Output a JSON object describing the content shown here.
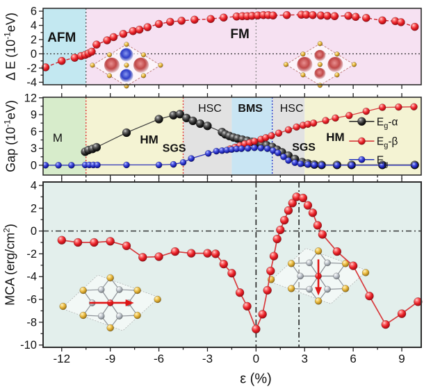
{
  "figure": {
    "x_axis": {
      "label": "ε (%)",
      "min": -13.15,
      "max": 10.2,
      "major_ticks": [
        -12,
        -9,
        -6,
        -3,
        0,
        3,
        6,
        9
      ],
      "minor_ticks": [
        -10.5,
        -7.5,
        -4.5,
        -1.5,
        1.5,
        4.5,
        7.5
      ]
    }
  },
  "chart_data": [
    {
      "id": "delta-E",
      "type": "line",
      "ylabel": {
        "pre": "Δ E (10",
        "sup": "-1",
        "post": "eV)"
      },
      "ylim": [
        -4.35,
        6.4
      ],
      "yticks": {
        "major": [
          -4,
          -2,
          0,
          2,
          4,
          6
        ],
        "minor": [
          -3,
          -1,
          1,
          3,
          5
        ]
      },
      "regions": [
        {
          "label": "AFM",
          "from": -13.15,
          "to": -10.5,
          "fill": "#c3e8f1",
          "label_color": "#e8191c",
          "label_at": [
            -12.0,
            1.7
          ],
          "size": 19,
          "bold": true
        },
        {
          "label": "FM",
          "from": -10.5,
          "to": 10.2,
          "fill": "#f6e1f2",
          "label_color": "#2230c8",
          "label_at": [
            -1.0,
            2.2
          ],
          "size": 19,
          "bold": true
        }
      ],
      "vlines": [
        {
          "x": -10.5,
          "color": "#444444",
          "dash": "2 3",
          "width": 1.2
        },
        {
          "x": 0,
          "color": "#888888",
          "dash": "2 3",
          "width": 1.2
        }
      ],
      "hlines": [
        {
          "y": 0,
          "color": "#333333",
          "dash": "2 3",
          "width": 1.2
        }
      ],
      "series": [
        {
          "id": "delta-E",
          "marker": "red",
          "r": 5.6,
          "line_color": "#d0202a",
          "line_width": 1.4,
          "dash": "5 3",
          "points": [
            [
              -13,
              -1.9
            ],
            [
              -12,
              -1.0
            ],
            [
              -11.2,
              -0.55
            ],
            [
              -10.8,
              -0.3
            ],
            [
              -10.55,
              -0.15
            ],
            [
              -10.35,
              0.05
            ],
            [
              -10.15,
              0.3
            ],
            [
              -9.85,
              1.3
            ],
            [
              -9.2,
              1.9
            ],
            [
              -8.8,
              2.35
            ],
            [
              -8.2,
              2.8
            ],
            [
              -7.6,
              3.2
            ],
            [
              -7.2,
              3.4
            ],
            [
              -6.7,
              3.75
            ],
            [
              -6,
              4.2
            ],
            [
              -5.3,
              4.5
            ],
            [
              -4.6,
              4.65
            ],
            [
              -3.8,
              4.8
            ],
            [
              -2.8,
              4.9
            ],
            [
              -2,
              5.1
            ],
            [
              -1.2,
              5.25
            ],
            [
              -0.85,
              5.3
            ],
            [
              -0.55,
              5.3
            ],
            [
              -0.25,
              5.35
            ],
            [
              0.1,
              5.4
            ],
            [
              0.45,
              5.45
            ],
            [
              0.75,
              5.45
            ],
            [
              1.05,
              5.4
            ],
            [
              1.9,
              5.45
            ],
            [
              2.8,
              5.5
            ],
            [
              3.1,
              5.5
            ],
            [
              3.5,
              5.45
            ],
            [
              4,
              5.4
            ],
            [
              4.4,
              5.35
            ],
            [
              4.85,
              5.3
            ],
            [
              5.7,
              5.35
            ],
            [
              6.15,
              5.2
            ],
            [
              6.8,
              5.05
            ],
            [
              7.8,
              4.7
            ],
            [
              8.6,
              4.6
            ],
            [
              8.95,
              4.45
            ],
            [
              9.8,
              3.8
            ]
          ]
        }
      ]
    },
    {
      "id": "gap",
      "type": "line",
      "ylabel": {
        "pre": "Gap (10",
        "sup": "-1",
        "post": "eV)"
      },
      "ylim": [
        -1.75,
        12.1
      ],
      "yticks": {
        "major": [
          0,
          3,
          6,
          9,
          12
        ],
        "minor": [
          1.5,
          4.5,
          7.5,
          10.5
        ]
      },
      "regions": [
        {
          "label": "M",
          "from": -13.15,
          "to": -10.5,
          "fill": "#d7eccb",
          "label_color": "#1a1a1a",
          "label_at": [
            -12.25,
            4.2
          ],
          "size": 17,
          "bold": false
        },
        {
          "label": "HM",
          "from": -10.5,
          "to": -4.5,
          "fill": "#f4f3d3",
          "label_color": "#17c02e",
          "label_at": [
            -6.6,
            3.9
          ],
          "size": 17,
          "bold": true
        },
        {
          "label": "HSC",
          "from": -4.5,
          "to": -1.5,
          "fill": "#e2e2e2",
          "label_color": "#1a1a1a",
          "label_at": [
            -2.85,
            9.5
          ],
          "size": 16,
          "bold": false
        },
        {
          "label": "BMS",
          "from": -1.5,
          "to": 1.0,
          "fill": "#c9e5f3",
          "label_color": "#2233cc",
          "label_at": [
            -0.35,
            9.5
          ],
          "size": 16,
          "bold": true
        },
        {
          "label": "HSC",
          "from": 1.0,
          "to": 3.0,
          "fill": "#e2e2e2",
          "label_color": "#1a1a1a",
          "label_at": [
            2.2,
            9.5
          ],
          "size": 16,
          "bold": false
        },
        {
          "label": "HM",
          "from": 3.0,
          "to": 10.2,
          "fill": "#f4f3d3",
          "label_color": "#17c02e",
          "label_at": [
            4.9,
            4.3
          ],
          "size": 17,
          "bold": true
        }
      ],
      "annotations": [
        {
          "text": "SGS",
          "at": [
            -5.05,
            2.4
          ],
          "color": "#e8191c",
          "size": 16,
          "bold": true
        },
        {
          "text": "SGS",
          "at": [
            2.95,
            2.6
          ],
          "color": "#e8191c",
          "size": 16,
          "bold": true
        }
      ],
      "vlines": [
        {
          "x": -10.5,
          "color": "#e03030",
          "dash": "2 2.5",
          "width": 1.4
        },
        {
          "x": -4.5,
          "color": "#e03030",
          "dash": "2 2.5",
          "width": 1.4
        },
        {
          "x": 1.0,
          "color": "#2233cc",
          "dash": "2 2.5",
          "width": 1.4
        }
      ],
      "hlines": [],
      "legend": {
        "x_line": [
          5.75,
          7.3
        ],
        "x_text": 7.45,
        "rows": [
          {
            "y": 7.8,
            "color": "#222222",
            "marker": "black",
            "base": "E",
            "sub": "g",
            "suffix": "-α"
          },
          {
            "y": 4.3,
            "color": "#d42a2e",
            "marker": "red",
            "base": "E",
            "sub": "g",
            "suffix": "-β"
          },
          {
            "y": 1.0,
            "color": "#2233bb",
            "marker": "blue",
            "base": "E",
            "sub": "g",
            "suffix": ""
          }
        ]
      },
      "series": [
        {
          "id": "Eg-alpha",
          "marker": "black",
          "r": 6,
          "line_color": "#3c3c3c",
          "line_width": 1.2,
          "points": [
            [
              -10.55,
              2.4
            ],
            [
              -10.35,
              2.7
            ],
            [
              -10.1,
              2.9
            ],
            [
              -9.85,
              3.2
            ],
            [
              -8,
              5.8
            ],
            [
              -6,
              8.2
            ],
            [
              -5.1,
              8.9
            ],
            [
              -4.7,
              9.1
            ],
            [
              -4.3,
              8.4
            ],
            [
              -3.9,
              7.9
            ],
            [
              -3.45,
              7.4
            ],
            [
              -3,
              7.0
            ],
            [
              -2.1,
              5.9
            ],
            [
              -1.9,
              5.5
            ],
            [
              -1.65,
              5.2
            ],
            [
              -1.4,
              4.95
            ],
            [
              -1.15,
              4.75
            ],
            [
              -0.85,
              4.55
            ],
            [
              -0.55,
              4.35
            ],
            [
              -0.25,
              4.15
            ],
            [
              0.05,
              3.95
            ],
            [
              0.35,
              3.75
            ],
            [
              0.65,
              3.55
            ],
            [
              1,
              3.25
            ],
            [
              1.3,
              2.75
            ],
            [
              1.6,
              2.3
            ],
            [
              2,
              1.7
            ],
            [
              2.4,
              1.1
            ],
            [
              2.85,
              0.55
            ],
            [
              3.2,
              0.3
            ],
            [
              3.6,
              0.12
            ],
            [
              4.05,
              0.05
            ],
            [
              5,
              0.05
            ],
            [
              5.9,
              0.05
            ],
            [
              7.8,
              0.05
            ],
            [
              9.8,
              0.05
            ]
          ]
        },
        {
          "id": "Eg-beta",
          "marker": "red",
          "r": 5,
          "line_color": "#d8393c",
          "line_width": 1.3,
          "points": [
            [
              -1.6,
              2.9
            ],
            [
              -1.3,
              3.2
            ],
            [
              -1,
              3.5
            ],
            [
              -0.7,
              3.8
            ],
            [
              -0.4,
              4.0
            ],
            [
              -0.1,
              4.25
            ],
            [
              0.3,
              4.6
            ],
            [
              0.6,
              4.9
            ],
            [
              0.95,
              5.25
            ],
            [
              1.4,
              5.7
            ],
            [
              2,
              6.3
            ],
            [
              2.5,
              6.8
            ],
            [
              2.9,
              7.1
            ],
            [
              3.2,
              7.3
            ],
            [
              3.55,
              7.5
            ],
            [
              4.3,
              7.95
            ],
            [
              4.9,
              8.4
            ],
            [
              5.75,
              8.85
            ],
            [
              6.8,
              9.6
            ],
            [
              7.8,
              10.3
            ],
            [
              8.8,
              10.35
            ],
            [
              9.75,
              10.4
            ]
          ]
        },
        {
          "id": "Eg",
          "marker": "blue",
          "r": 4.6,
          "line_color": "#2a2fb8",
          "line_width": 1.3,
          "points": [
            [
              -13,
              0
            ],
            [
              -12.2,
              0
            ],
            [
              -11.4,
              0
            ],
            [
              -10.55,
              0.05
            ],
            [
              -10.3,
              0.05
            ],
            [
              -10.05,
              0.05
            ],
            [
              -9.8,
              0.05
            ],
            [
              -8,
              0.05
            ],
            [
              -6,
              0.05
            ],
            [
              -5.1,
              0.15
            ],
            [
              -4.5,
              0.5
            ],
            [
              -4,
              1.2
            ],
            [
              -2.95,
              2.1
            ],
            [
              -2.45,
              2.5
            ],
            [
              -2.1,
              2.6
            ],
            [
              -1.8,
              2.7
            ],
            [
              -1.5,
              2.8
            ],
            [
              -1.2,
              2.9
            ],
            [
              -0.9,
              2.95
            ],
            [
              -0.5,
              3.0
            ],
            [
              -0.1,
              3.1
            ],
            [
              0.3,
              3.05
            ],
            [
              0.7,
              2.95
            ],
            [
              1.05,
              2.6
            ],
            [
              1.35,
              2.2
            ],
            [
              1.7,
              1.5
            ],
            [
              2,
              0.85
            ],
            [
              2.4,
              0.45
            ],
            [
              2.75,
              0.25
            ],
            [
              3.2,
              0.12
            ],
            [
              3.6,
              0.05
            ],
            [
              4.05,
              0
            ],
            [
              5,
              0
            ],
            [
              5.9,
              0
            ],
            [
              7.8,
              0
            ],
            [
              9.8,
              0
            ]
          ]
        }
      ]
    },
    {
      "id": "mca",
      "type": "line",
      "ylabel": {
        "pre": "MCA (erg/cm",
        "sup": "2",
        "post": ")"
      },
      "ylim": [
        -10.2,
        4.3
      ],
      "yticks": {
        "major": [
          -10,
          -8,
          -6,
          -4,
          -2,
          0,
          2,
          4
        ],
        "minor": [
          -9,
          -7,
          -5,
          -3,
          -1,
          1,
          3
        ]
      },
      "regions": [
        {
          "label": "",
          "from": -13.15,
          "to": 10.2,
          "fill": "#e3efec",
          "label_color": "#111111",
          "label_at": [
            0,
            0
          ],
          "size": 0,
          "bold": false
        }
      ],
      "vlines": [
        {
          "x": 0,
          "color": "#222222",
          "dash": "8 4 2 4",
          "width": 1.6
        },
        {
          "x": 2.65,
          "color": "#222222",
          "dash": "8 4 2 4",
          "width": 1.6
        }
      ],
      "hlines": [
        {
          "y": 0,
          "color": "#222222",
          "dash": "8 4 2 4",
          "width": 1.4
        }
      ],
      "series": [
        {
          "id": "MCA",
          "marker": "red",
          "r": 6,
          "line_color": "#d8393c",
          "line_width": 1.7,
          "points": [
            [
              -12,
              -0.8
            ],
            [
              -11,
              -1.0
            ],
            [
              -10,
              -1.0
            ],
            [
              -9,
              -0.9
            ],
            [
              -8,
              -1.3
            ],
            [
              -7,
              -2.3
            ],
            [
              -6,
              -2.25
            ],
            [
              -5,
              -1.8
            ],
            [
              -4,
              -1.95
            ],
            [
              -3,
              -1.95
            ],
            [
              -2.5,
              -2.0
            ],
            [
              -2,
              -2.9
            ],
            [
              -1.5,
              -3.7
            ],
            [
              -1,
              -5.4
            ],
            [
              -0.55,
              -6.6
            ],
            [
              0,
              -8.6
            ],
            [
              0.4,
              -7.3
            ],
            [
              0.7,
              -5.2
            ],
            [
              0.9,
              -3.5
            ],
            [
              1.1,
              -2.2
            ],
            [
              1.3,
              -0.7
            ],
            [
              1.5,
              0.1
            ],
            [
              1.75,
              0.95
            ],
            [
              2,
              1.8
            ],
            [
              2.25,
              2.45
            ],
            [
              2.5,
              3.0
            ],
            [
              2.9,
              2.9
            ],
            [
              3.2,
              2.25
            ],
            [
              3.5,
              1.6
            ],
            [
              3.8,
              0.5
            ],
            [
              4.1,
              -0.3
            ],
            [
              5,
              -1.8
            ],
            [
              6,
              -3.05
            ],
            [
              7,
              -5.7
            ],
            [
              8,
              -8.2
            ],
            [
              9,
              -7.25
            ],
            [
              10,
              -6.2
            ]
          ]
        }
      ]
    }
  ],
  "insets": [
    {
      "name": "afm-spin-density-inset",
      "panel": 0,
      "at": [
        -8.0,
        -1.6
      ],
      "kind": "spin",
      "lobes": "afm"
    },
    {
      "name": "fm-spin-density-inset",
      "panel": 0,
      "at": [
        3.95,
        -1.5
      ],
      "kind": "spin",
      "lobes": "fm"
    },
    {
      "name": "lattice-inplane-magnetization-inset",
      "panel": 2,
      "at": [
        -9.0,
        -6.3
      ],
      "kind": "lattice",
      "arrow": "horizontal"
    },
    {
      "name": "lattice-perpendicular-magnetization-inset",
      "panel": 2,
      "at": [
        3.85,
        -3.95
      ],
      "kind": "lattice",
      "arrow": "vertical"
    }
  ]
}
